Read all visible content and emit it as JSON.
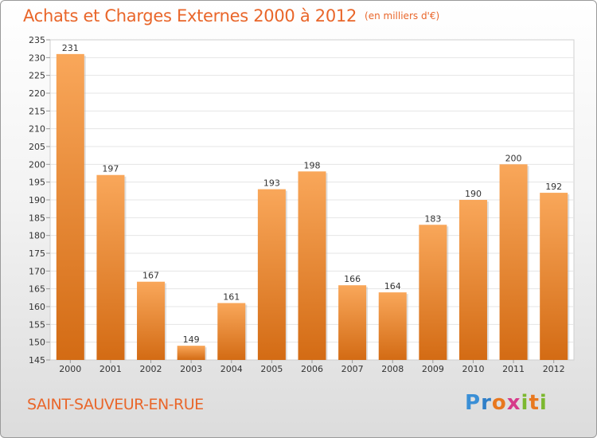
{
  "title": {
    "main": "Achats et Charges Externes 2000 à 2012",
    "unit": "(en milliers d'€)"
  },
  "commune": "SAINT-SAUVEUR-EN-RUE",
  "logo": {
    "letters": [
      "P",
      "r",
      "o",
      "x",
      "i",
      "t",
      "i"
    ],
    "colors": [
      "#3a8fd6",
      "#2f7fc8",
      "#e8781f",
      "#d63a8a",
      "#7cb82f",
      "#e8781f",
      "#7cb82f"
    ]
  },
  "colors": {
    "bar_top": "#f9a75a",
    "bar_bottom": "#d36b14",
    "accent": "#e9662a",
    "grid": "#e4e4e4"
  },
  "chart_data": {
    "type": "bar",
    "categories": [
      "2000",
      "2001",
      "2002",
      "2003",
      "2004",
      "2005",
      "2006",
      "2007",
      "2008",
      "2009",
      "2010",
      "2011",
      "2012"
    ],
    "values": [
      231,
      197,
      167,
      149,
      161,
      193,
      198,
      166,
      164,
      183,
      190,
      200,
      192
    ],
    "ylim": [
      145,
      235
    ],
    "yticks": [
      145,
      150,
      155,
      160,
      165,
      170,
      175,
      180,
      185,
      190,
      195,
      200,
      205,
      210,
      215,
      220,
      225,
      230,
      235
    ],
    "grid": true,
    "data_labels": true
  }
}
